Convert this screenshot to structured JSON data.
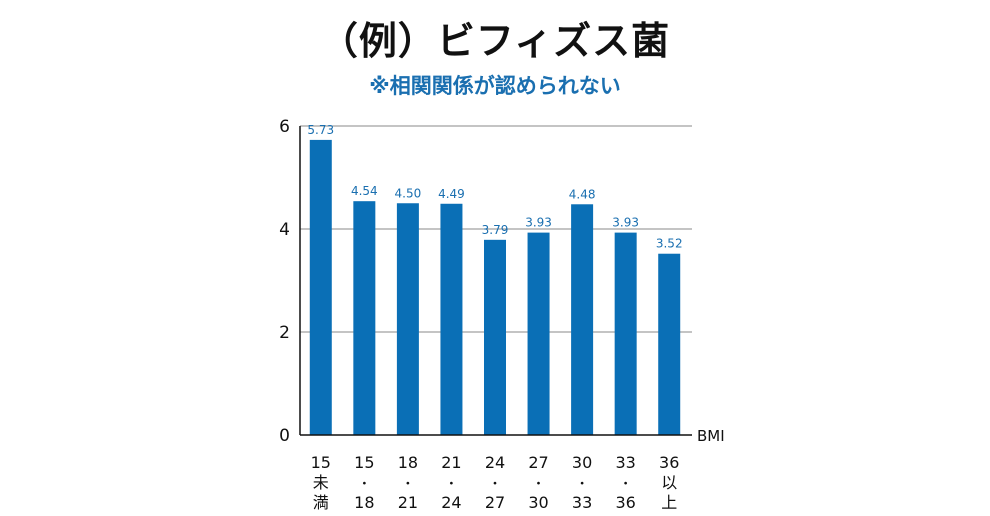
{
  "title": "（例）ビフィズス菌",
  "subtitle": "※相関関係が認められない",
  "colors": {
    "bar": "#0a6fb6",
    "label": "#1a6fb0",
    "subtitle": "#1a6fb0",
    "grid": "#8a8a8a",
    "axis": "#111111"
  },
  "chart_data": {
    "type": "bar",
    "title": "（例）ビフィズス菌",
    "subtitle": "※相関関係が認められない",
    "xlabel": "BMI",
    "ylabel": "",
    "ylim": [
      0,
      6
    ],
    "yticks": [
      0,
      2,
      4,
      6
    ],
    "grid": true,
    "categories": [
      [
        "15",
        "未",
        "満"
      ],
      [
        "15",
        "・",
        "18"
      ],
      [
        "18",
        "・",
        "21"
      ],
      [
        "21",
        "・",
        "24"
      ],
      [
        "24",
        "・",
        "27"
      ],
      [
        "27",
        "・",
        "30"
      ],
      [
        "30",
        "・",
        "33"
      ],
      [
        "33",
        "・",
        "36"
      ],
      [
        "36",
        "以",
        "上"
      ]
    ],
    "values": [
      5.73,
      4.54,
      4.5,
      4.49,
      3.79,
      3.93,
      4.48,
      3.93,
      3.52
    ],
    "value_labels": [
      "5.73",
      "4.54",
      "4.50",
      "4.49",
      "3.79",
      "3.93",
      "4.48",
      "3.93",
      "3.52"
    ]
  }
}
